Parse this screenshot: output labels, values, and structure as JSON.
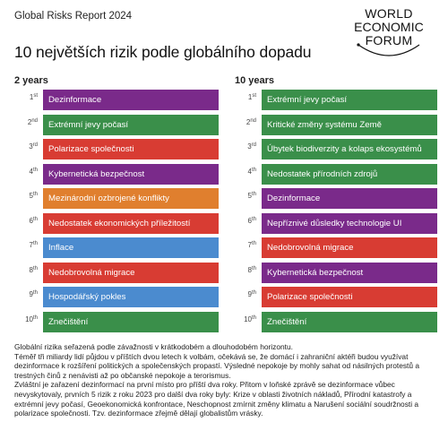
{
  "header": {
    "report": "Global Risks Report 2024",
    "title": "10 největších rizik podle globálního dopadu",
    "logo": [
      "WORLD",
      "ECONOMIC",
      "FORUM"
    ]
  },
  "colors": {
    "economic": "#4b8bcf",
    "environmental": "#3a8f4a",
    "geopolitical": "#e07f2e",
    "societal": "#d83c33",
    "technological": "#7a2a8a"
  },
  "columns": [
    {
      "heading": "2 years",
      "items": [
        {
          "rank": "1",
          "suffix": "st",
          "label": "Dezinformace",
          "category": "technological"
        },
        {
          "rank": "2",
          "suffix": "nd",
          "label": "Extrémní jevy počasí",
          "category": "environmental"
        },
        {
          "rank": "3",
          "suffix": "rd",
          "label": "Polarizace společnosti",
          "category": "societal"
        },
        {
          "rank": "4",
          "suffix": "th",
          "label": "Kybernetická bezpečnost",
          "category": "technological"
        },
        {
          "rank": "5",
          "suffix": "th",
          "label": "Mezinárodní ozbrojené konflikty",
          "category": "geopolitical"
        },
        {
          "rank": "6",
          "suffix": "th",
          "label": "Nedostatek ekonomických příležitostí",
          "category": "societal"
        },
        {
          "rank": "7",
          "suffix": "th",
          "label": "Inflace",
          "category": "economic"
        },
        {
          "rank": "8",
          "suffix": "th",
          "label": "Nedobrovolná migrace",
          "category": "societal"
        },
        {
          "rank": "9",
          "suffix": "th",
          "label": "Hospodářský pokles",
          "category": "economic"
        },
        {
          "rank": "10",
          "suffix": "th",
          "label": "Znečištění",
          "category": "environmental"
        }
      ]
    },
    {
      "heading": "10 years",
      "items": [
        {
          "rank": "1",
          "suffix": "st",
          "label": "Extrémní jevy počasí",
          "category": "environmental"
        },
        {
          "rank": "2",
          "suffix": "nd",
          "label": "Kritické změny systému Země",
          "category": "environmental"
        },
        {
          "rank": "3",
          "suffix": "rd",
          "label": "Úbytek biodiverzity a kolaps ekosystémů",
          "category": "environmental"
        },
        {
          "rank": "4",
          "suffix": "th",
          "label": "Nedostatek přírodních zdrojů",
          "category": "environmental"
        },
        {
          "rank": "5",
          "suffix": "th",
          "label": "Dezinformace",
          "category": "technological"
        },
        {
          "rank": "6",
          "suffix": "th",
          "label": "Nepříznivé důsledky technologie UI",
          "category": "technological"
        },
        {
          "rank": "7",
          "suffix": "th",
          "label": "Nedobrovolná migrace",
          "category": "societal"
        },
        {
          "rank": "8",
          "suffix": "th",
          "label": "Kybernetická bezpečnost",
          "category": "technological"
        },
        {
          "rank": "9",
          "suffix": "th",
          "label": "Polarizace společnosti",
          "category": "societal"
        },
        {
          "rank": "10",
          "suffix": "th",
          "label": "Znečištění",
          "category": "environmental"
        }
      ]
    }
  ],
  "footnote": [
    "Globální rizika seřazená podle závažnosti v krátkodobém a dlouhodobém horizontu.",
    "Téměř tři miliardy lidí půjdou v příštích dvou letech k volbám, očekává se, že domácí i zahraniční aktéři budou využívat dezinformace k rozšíření politických a společenských propastí. Výsledné nepokoje by mohly sahat od násilných protestů a trestných činů z nenávisti až po občanské nepokoje a terorismus.",
    "Zvláštní je zařazení dezinformací na první místo pro příští dva roky. Přitom v loňské zprávě se dezinformace vůbec nevyskytovaly, prvních 5 rizik z roku 2023 pro další dva roky byly: Krize v oblasti životních nákladů, Přírodní katastrofy a extrémní jevy počasí, Geoekonomická konfrontace, Neschopnost zmírnit změny klimatu a Narušení sociální soudržnosti a polarizace společnosti. Tzv. dezinformace zřejmě dělají globalistům vrásky."
  ]
}
